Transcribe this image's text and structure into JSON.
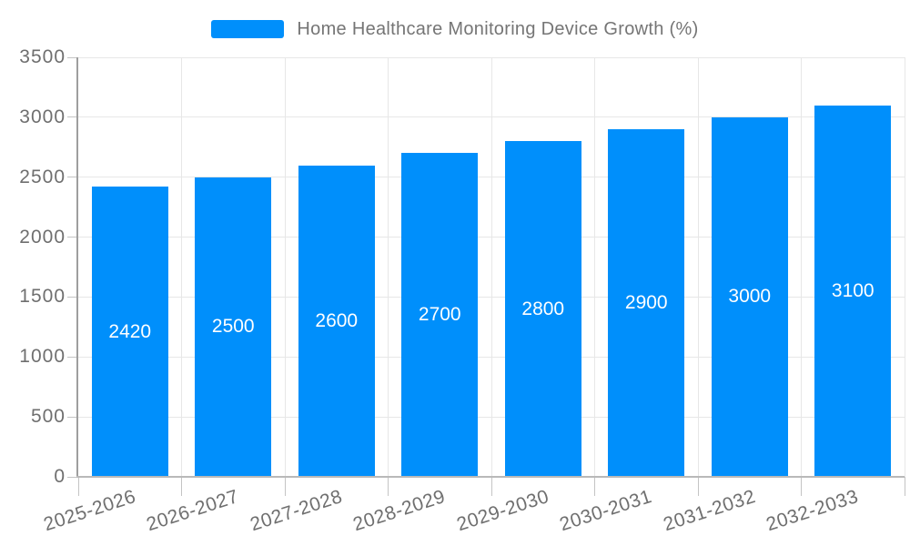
{
  "chart_data": {
    "type": "bar",
    "title": "Home Healthcare Monitoring Device Growth (%)",
    "categories": [
      "2025-2026",
      "2026-2027",
      "2027-2028",
      "2028-2029",
      "2029-2030",
      "2030-2031",
      "2031-2032",
      "2032-2033"
    ],
    "values": [
      2420,
      2500,
      2600,
      2700,
      2800,
      2900,
      3000,
      3100
    ],
    "xlabel": "",
    "ylabel": "",
    "ylim": [
      0,
      3500
    ],
    "y_ticks": [
      0,
      500,
      1000,
      1500,
      2000,
      2500,
      3000,
      3500
    ],
    "grid": true,
    "legend_position": "top",
    "data_label_position": "center"
  },
  "legend": {
    "label": "Home Healthcare Monitoring Device Growth (%)"
  },
  "colors": {
    "bar": "#008FFB",
    "value_label": "#FFFFFF",
    "grid_line": "#E7E7E7",
    "y_axis_line": "#9E9E9E",
    "x_axis_line": "#B9B9B9",
    "tick_mark": "#C4C4C4",
    "axis_label": "#6F6F6F",
    "legend_text": "#757575",
    "background": "#FFFFFF"
  }
}
